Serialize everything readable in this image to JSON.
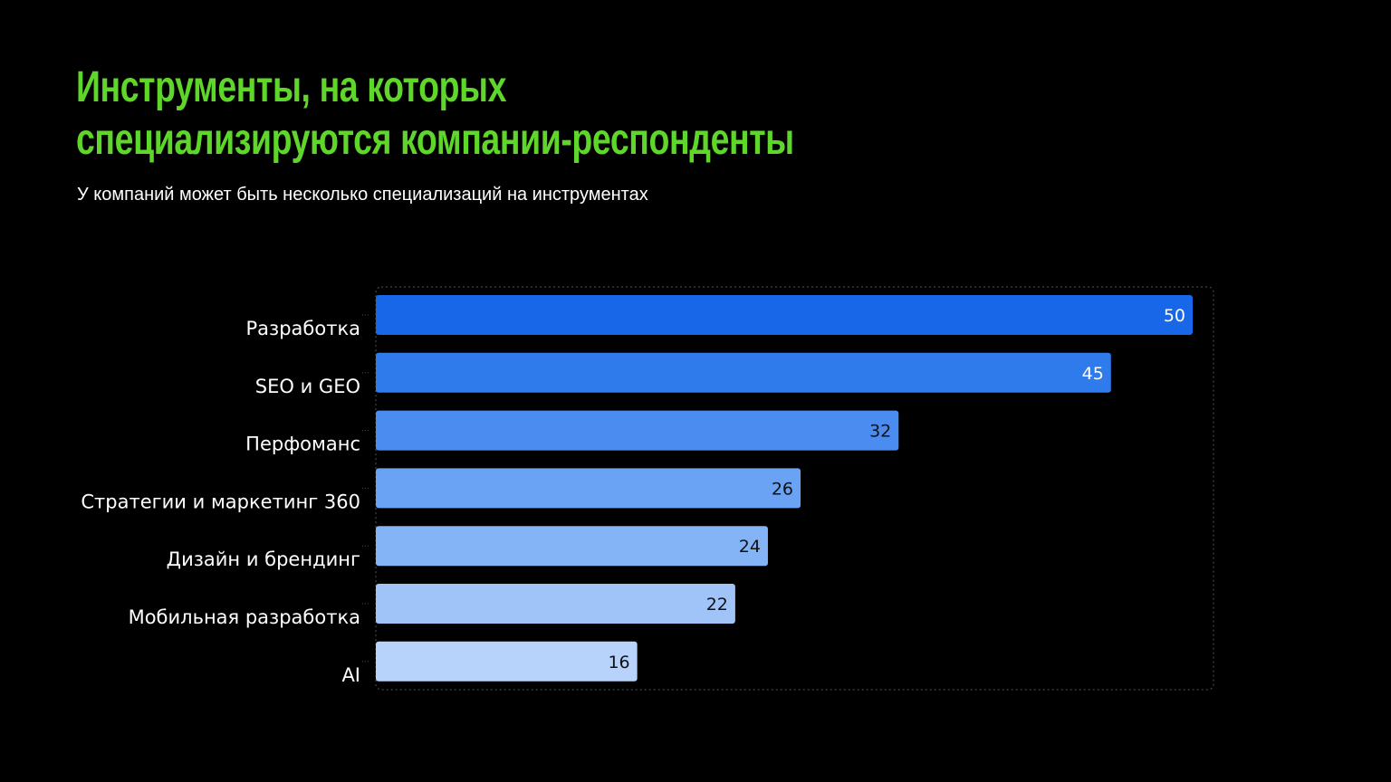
{
  "title_lines": [
    "Инструменты, на которых",
    "специализируются компании-респонденты"
  ],
  "subtitle": "У компаний может быть несколько специализаций на инструментах",
  "colors": {
    "background": "#000000",
    "title": "#5ed62a",
    "subtitle": "#ffffff",
    "category_label": "#ffffff",
    "bars": [
      "#1767e8",
      "#2f7bec",
      "#4a8cef",
      "#6aa3f3",
      "#84b3f6",
      "#a1c4f8",
      "#b8d3fb"
    ],
    "value_label_light": "#ffffff",
    "value_label_dark": "#111111",
    "frame": "#555555"
  },
  "chart_data": {
    "type": "bar",
    "orientation": "horizontal",
    "categories": [
      "Разработка",
      "SEO и GEO",
      "Перфоманс",
      "Стратегии и маркетинг 360",
      "Дизайн и брендинг",
      "Мобильная разработка",
      "AI"
    ],
    "values": [
      50,
      45,
      32,
      26,
      24,
      22,
      16
    ],
    "xlim": [
      0,
      51
    ],
    "grid": false,
    "legend": "none",
    "data_labels": true
  }
}
